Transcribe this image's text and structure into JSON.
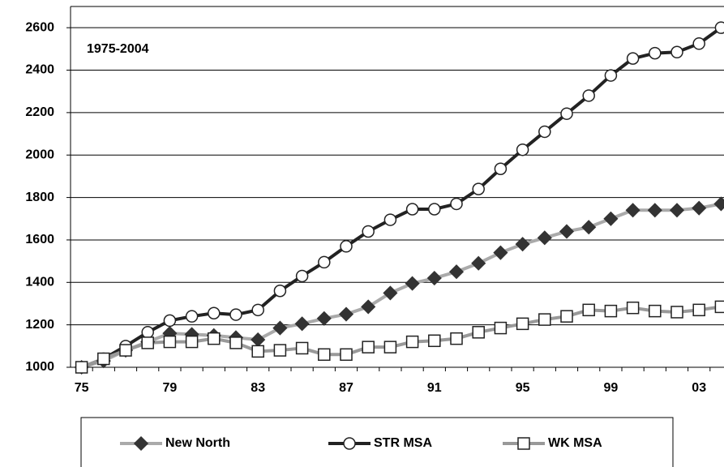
{
  "chart_data": {
    "type": "line",
    "annotation": "1975-2004",
    "categories": [
      "75",
      null,
      null,
      null,
      "79",
      null,
      null,
      null,
      "83",
      null,
      null,
      null,
      "87",
      null,
      null,
      null,
      "91",
      null,
      null,
      null,
      "95",
      null,
      null,
      null,
      "99",
      null,
      null,
      null,
      "03",
      null
    ],
    "series": [
      {
        "name": "New North",
        "color": "#aaaaaa",
        "marker": "diamond",
        "marker_color": "#333333",
        "values": [
          1000,
          1030,
          1080,
          1120,
          1160,
          1155,
          1150,
          1140,
          1130,
          1185,
          1205,
          1230,
          1250,
          1285,
          1350,
          1395,
          1420,
          1450,
          1490,
          1540,
          1580,
          1610,
          1640,
          1660,
          1700,
          1740,
          1740,
          1740,
          1750,
          1770
        ]
      },
      {
        "name": "STR MSA",
        "color": "#222222",
        "marker": "circle",
        "marker_color": "#ffffff",
        "values": [
          1000,
          1040,
          1100,
          1165,
          1220,
          1240,
          1255,
          1248,
          1270,
          1360,
          1430,
          1495,
          1570,
          1640,
          1695,
          1745,
          1745,
          1770,
          1840,
          1935,
          2025,
          2110,
          2195,
          2280,
          2375,
          2455,
          2480,
          2485,
          2525,
          2600
        ]
      },
      {
        "name": "WK MSA",
        "color": "#999999",
        "marker": "square",
        "marker_color": "#ffffff",
        "values": [
          1000,
          1040,
          1080,
          1115,
          1120,
          1120,
          1135,
          1115,
          1075,
          1080,
          1090,
          1060,
          1060,
          1095,
          1095,
          1120,
          1125,
          1135,
          1165,
          1185,
          1205,
          1225,
          1240,
          1270,
          1265,
          1280,
          1265,
          1260,
          1270,
          1285
        ]
      }
    ],
    "ylim": [
      1000,
      2700
    ],
    "yticks": [
      1000,
      1200,
      1400,
      1600,
      1800,
      2000,
      2200,
      2400,
      2600
    ],
    "grid": true
  }
}
